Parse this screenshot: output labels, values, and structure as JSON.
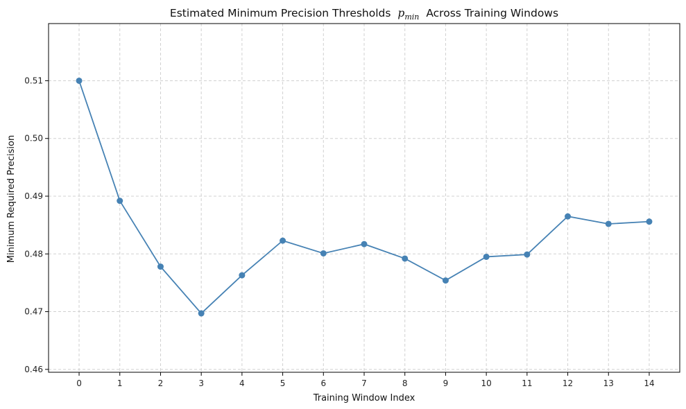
{
  "chart_data": {
    "type": "line",
    "title": "Estimated Minimum Precision Thresholds",
    "title_math": "p",
    "title_math_sub": "min",
    "title_suffix": "Across Training Windows",
    "xlabel": "Training Window Index",
    "ylabel": "Minimum Required Precision",
    "x": [
      0,
      1,
      2,
      3,
      4,
      5,
      6,
      7,
      8,
      9,
      10,
      11,
      12,
      13,
      14
    ],
    "x_tick_labels": [
      "0",
      "1",
      "2",
      "3",
      "4",
      "5",
      "6",
      "7",
      "8",
      "9",
      "10",
      "11",
      "12",
      "13",
      "14"
    ],
    "xlim": [
      -0.75,
      14.75
    ],
    "y_ticks": [
      0.46,
      0.47,
      0.48,
      0.49,
      0.5,
      0.51
    ],
    "y_tick_labels": [
      "0.46",
      "0.47",
      "0.48",
      "0.49",
      "0.50",
      "0.51"
    ],
    "ylim": [
      0.4595,
      0.5199
    ],
    "series": [
      {
        "values": [
          0.51,
          0.4892,
          0.4778,
          0.4697,
          0.4763,
          0.4823,
          0.4801,
          0.4817,
          0.4792,
          0.4754,
          0.4795,
          0.4799,
          0.4865,
          0.4852,
          0.4856
        ],
        "color": "#4682b4",
        "marker": "circle"
      }
    ],
    "grid": true,
    "grid_style": "dashed",
    "colors": {
      "line": "#4682b4",
      "grid": "#d0d0d0",
      "axis": "#000000"
    }
  }
}
